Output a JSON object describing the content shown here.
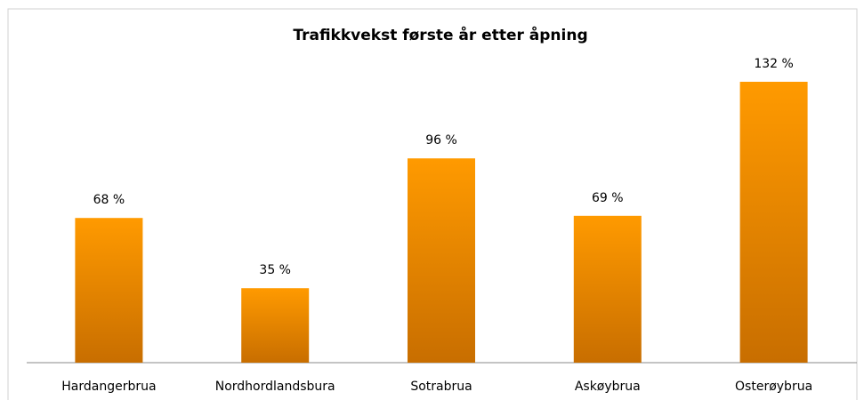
{
  "chart_data": {
    "type": "bar",
    "title": "Trafikkvekst første år etter åpning",
    "categories": [
      "Hardangerbrua",
      "Nordhordlandsbura",
      "Sotrabrua",
      "Askøybrua",
      "Osterøybrua"
    ],
    "values": [
      68,
      35,
      96,
      69,
      132
    ],
    "value_labels": [
      "68 %",
      "35 %",
      "96 %",
      "69 %",
      "132 %"
    ],
    "color": "#ff9a00"
  }
}
